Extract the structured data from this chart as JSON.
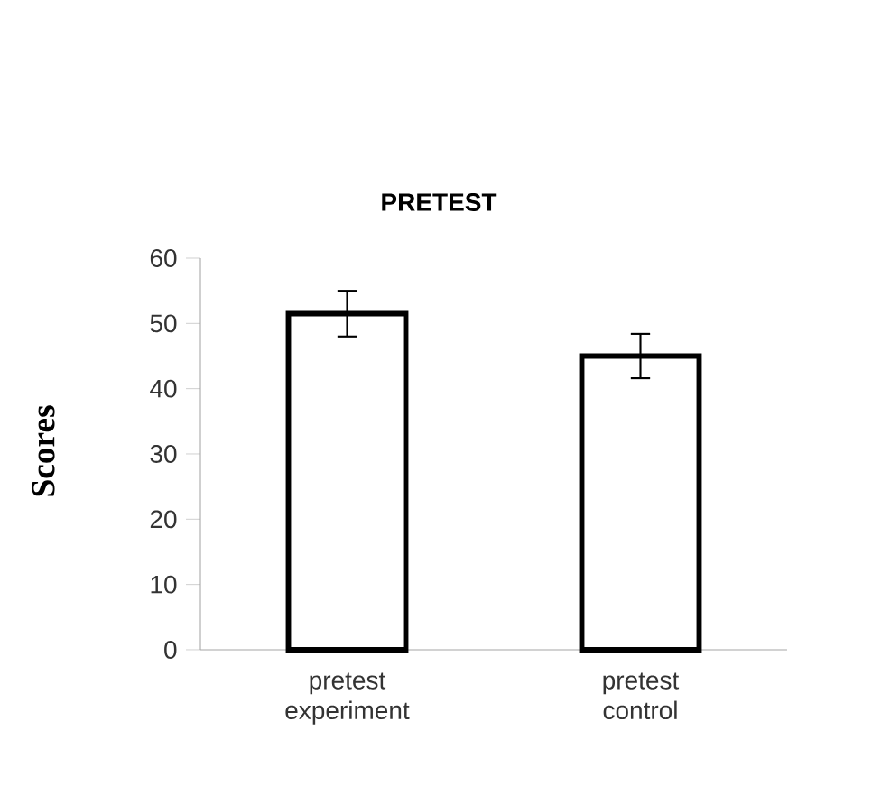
{
  "chart_data": {
    "type": "bar",
    "title": "PRETEST",
    "ylabel": "Scores",
    "categories": [
      "pretest experiment",
      "pretest control"
    ],
    "values": [
      51.5,
      45
    ],
    "errors": [
      3.5,
      3.4
    ],
    "color": "#ffffff",
    "ylim": [
      0,
      60
    ],
    "yticks": [
      0,
      10,
      20,
      30,
      40,
      50,
      60
    ],
    "grid": false
  }
}
